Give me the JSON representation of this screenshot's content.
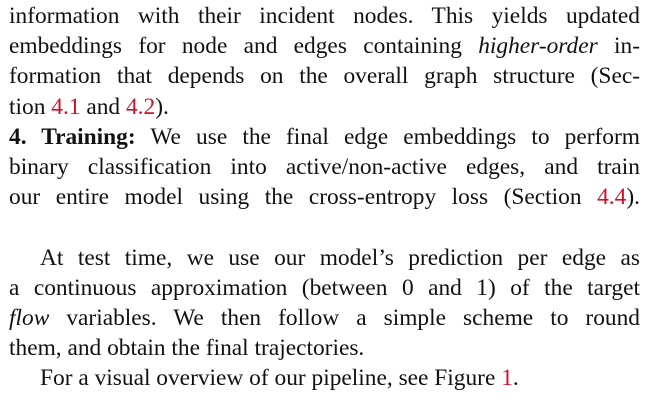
{
  "paragraph1": {
    "l1": "information with their incident nodes. This yields updated",
    "l2a": "embeddings for node and edges containing ",
    "l2b": "higher-order",
    "l2c": " in-",
    "l3": "formation that depends on the overall graph structure (Sec-",
    "l4a": "tion ",
    "l4ref1": "4.1",
    "l4b": " and ",
    "l4ref2": "4.2",
    "l4c": ")."
  },
  "step4": {
    "label": "4. Training:",
    "l1rest": " We use the final edge embeddings to perform",
    "l2": "binary classification into active/non-active edges, and train",
    "l3a": "our entire model using the cross-entropy loss (Section ",
    "l3ref": "4.4",
    "l3b": ")."
  },
  "paragraph2": {
    "l1": "At test time, we use our model’s prediction per edge as",
    "l2": "a continuous approximation (between 0 and 1) of the target",
    "l3a": "flow",
    "l3b": " variables. We then follow a simple scheme to round",
    "l4": "them, and obtain the final trajectories."
  },
  "paragraph3": {
    "l1a": "For a visual overview of our pipeline, see Figure ",
    "l1ref": "1",
    "l1b": "."
  },
  "colors": {
    "text": "#111111",
    "reference": "#d0112b"
  }
}
